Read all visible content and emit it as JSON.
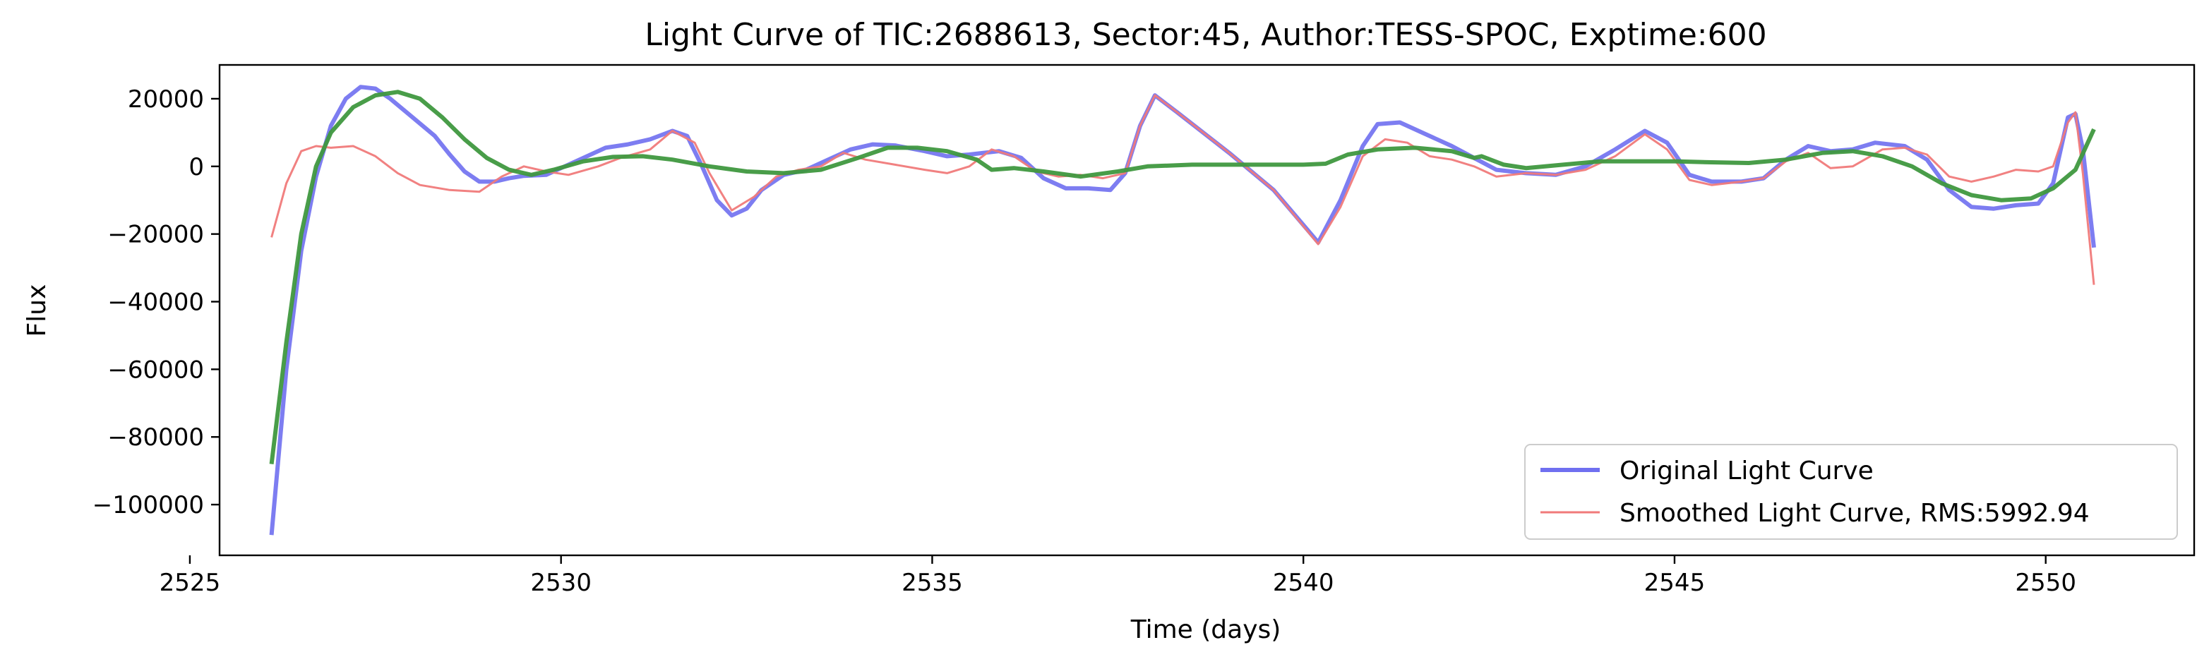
{
  "chart_data": {
    "type": "line",
    "title": "Light Curve of TIC:2688613, Sector:45, Author:TESS-SPOC, Exptime:600",
    "xlabel": "Time (days)",
    "ylabel": "Flux",
    "xlim": [
      2525.4,
      2552.0
    ],
    "ylim": [
      -115000,
      30000
    ],
    "xticks": [
      2525,
      2530,
      2535,
      2540,
      2545,
      2550
    ],
    "yticks": [
      20000,
      0,
      -20000,
      -40000,
      -60000,
      -80000,
      -100000
    ],
    "xtick_labels": [
      "2525",
      "2530",
      "2535",
      "2540",
      "2545",
      "2550"
    ],
    "ytick_labels": [
      "20000",
      "0",
      "−20000",
      "−40000",
      "−60000",
      "−80000",
      "−100000"
    ],
    "grid": false,
    "legend_position": "lower-right",
    "legend": [
      {
        "label": "Original Light Curve",
        "color": "#6f6ff0"
      },
      {
        "label": "Smoothed Light Curve, RMS:5992.94",
        "color": "#f07a7a"
      }
    ],
    "series": [
      {
        "color": "#6f6ff0",
        "points": [
          [
            2526.1,
            -109000
          ],
          [
            2526.3,
            -60000
          ],
          [
            2526.5,
            -25000
          ],
          [
            2526.7,
            -3000
          ],
          [
            2526.9,
            12000
          ],
          [
            2527.1,
            20000
          ],
          [
            2527.3,
            23500
          ],
          [
            2527.5,
            23000
          ],
          [
            2527.7,
            20000
          ],
          [
            2528.0,
            14500
          ],
          [
            2528.3,
            9000
          ],
          [
            2528.5,
            3500
          ],
          [
            2528.7,
            -1500
          ],
          [
            2528.9,
            -4500
          ],
          [
            2529.1,
            -4500
          ],
          [
            2529.3,
            -3500
          ],
          [
            2529.5,
            -2800
          ],
          [
            2529.8,
            -2500
          ],
          [
            2530.0,
            -500
          ],
          [
            2530.3,
            2500
          ],
          [
            2530.6,
            5500
          ],
          [
            2530.9,
            6500
          ],
          [
            2531.2,
            8000
          ],
          [
            2531.5,
            10500
          ],
          [
            2531.7,
            9000
          ],
          [
            2531.9,
            0
          ],
          [
            2532.1,
            -10000
          ],
          [
            2532.3,
            -14500
          ],
          [
            2532.5,
            -12500
          ],
          [
            2532.7,
            -7000
          ],
          [
            2533.0,
            -2500
          ],
          [
            2533.3,
            -1000
          ],
          [
            2533.6,
            2000
          ],
          [
            2533.9,
            5000
          ],
          [
            2534.2,
            6500
          ],
          [
            2534.5,
            6200
          ],
          [
            2534.9,
            4500
          ],
          [
            2535.2,
            3000
          ],
          [
            2535.5,
            3500
          ],
          [
            2535.9,
            4500
          ],
          [
            2536.2,
            2500
          ],
          [
            2536.5,
            -3500
          ],
          [
            2536.8,
            -6500
          ],
          [
            2537.1,
            -6500
          ],
          [
            2537.4,
            -7000
          ],
          [
            2537.6,
            -2000
          ],
          [
            2537.8,
            12000
          ],
          [
            2538.0,
            21000
          ],
          [
            2538.3,
            16000
          ],
          [
            2539.0,
            4000
          ],
          [
            2539.6,
            -7000
          ],
          [
            2540.2,
            -22500
          ],
          [
            2540.5,
            -10000
          ],
          [
            2540.8,
            6000
          ],
          [
            2541.0,
            12500
          ],
          [
            2541.3,
            13000
          ],
          [
            2541.6,
            10000
          ],
          [
            2542.0,
            6000
          ],
          [
            2542.3,
            2500
          ],
          [
            2542.6,
            -1000
          ],
          [
            2543.0,
            -2000
          ],
          [
            2543.4,
            -2500
          ],
          [
            2543.8,
            0
          ],
          [
            2544.2,
            5000
          ],
          [
            2544.6,
            10500
          ],
          [
            2544.9,
            7000
          ],
          [
            2545.2,
            -2500
          ],
          [
            2545.5,
            -4500
          ],
          [
            2545.9,
            -4500
          ],
          [
            2546.2,
            -3500
          ],
          [
            2546.5,
            2000
          ],
          [
            2546.8,
            6000
          ],
          [
            2547.1,
            4500
          ],
          [
            2547.4,
            5000
          ],
          [
            2547.7,
            7000
          ],
          [
            2548.1,
            6000
          ],
          [
            2548.4,
            2000
          ],
          [
            2548.7,
            -7000
          ],
          [
            2549.0,
            -12000
          ],
          [
            2549.3,
            -12500
          ],
          [
            2549.6,
            -11500
          ],
          [
            2549.9,
            -11000
          ],
          [
            2550.1,
            -5000
          ],
          [
            2550.3,
            14500
          ],
          [
            2550.4,
            15500
          ],
          [
            2550.5,
            5000
          ],
          [
            2550.65,
            -24000
          ]
        ]
      },
      {
        "color": "#f07a7a",
        "points": [
          [
            2526.1,
            -21000
          ],
          [
            2526.3,
            -5000
          ],
          [
            2526.5,
            4500
          ],
          [
            2526.7,
            6000
          ],
          [
            2526.9,
            5500
          ],
          [
            2527.2,
            6000
          ],
          [
            2527.5,
            3000
          ],
          [
            2527.8,
            -2000
          ],
          [
            2528.1,
            -5500
          ],
          [
            2528.5,
            -7000
          ],
          [
            2528.9,
            -7500
          ],
          [
            2529.2,
            -3000
          ],
          [
            2529.5,
            0
          ],
          [
            2529.8,
            -1500
          ],
          [
            2530.1,
            -2500
          ],
          [
            2530.5,
            0
          ],
          [
            2530.8,
            2500
          ],
          [
            2531.2,
            5000
          ],
          [
            2531.5,
            10500
          ],
          [
            2531.8,
            7000
          ],
          [
            2532.0,
            -2000
          ],
          [
            2532.3,
            -13000
          ],
          [
            2532.6,
            -9000
          ],
          [
            2532.9,
            -3000
          ],
          [
            2533.2,
            -1000
          ],
          [
            2533.5,
            0
          ],
          [
            2533.8,
            4000
          ],
          [
            2534.1,
            2000
          ],
          [
            2534.5,
            500
          ],
          [
            2534.9,
            -1000
          ],
          [
            2535.2,
            -2000
          ],
          [
            2535.5,
            0
          ],
          [
            2535.8,
            5000
          ],
          [
            2536.1,
            3000
          ],
          [
            2536.4,
            -1500
          ],
          [
            2536.7,
            -3000
          ],
          [
            2537.0,
            -2500
          ],
          [
            2537.3,
            -3500
          ],
          [
            2537.6,
            -2000
          ],
          [
            2537.8,
            12000
          ],
          [
            2538.0,
            21000
          ],
          [
            2538.3,
            16000
          ],
          [
            2539.0,
            4000
          ],
          [
            2539.6,
            -7000
          ],
          [
            2540.2,
            -23000
          ],
          [
            2540.5,
            -12000
          ],
          [
            2540.8,
            3000
          ],
          [
            2541.1,
            8000
          ],
          [
            2541.4,
            7000
          ],
          [
            2541.7,
            3000
          ],
          [
            2542.0,
            2000
          ],
          [
            2542.3,
            0
          ],
          [
            2542.6,
            -3000
          ],
          [
            2543.0,
            -2000
          ],
          [
            2543.4,
            -2500
          ],
          [
            2543.8,
            -1000
          ],
          [
            2544.2,
            3000
          ],
          [
            2544.6,
            9500
          ],
          [
            2544.9,
            5000
          ],
          [
            2545.2,
            -4000
          ],
          [
            2545.5,
            -5500
          ],
          [
            2545.9,
            -4500
          ],
          [
            2546.2,
            -3500
          ],
          [
            2546.5,
            1500
          ],
          [
            2546.8,
            4000
          ],
          [
            2547.1,
            -500
          ],
          [
            2547.4,
            0
          ],
          [
            2547.8,
            5000
          ],
          [
            2548.1,
            5500
          ],
          [
            2548.4,
            3500
          ],
          [
            2548.7,
            -3000
          ],
          [
            2549.0,
            -4500
          ],
          [
            2549.3,
            -3000
          ],
          [
            2549.6,
            -1000
          ],
          [
            2549.9,
            -1500
          ],
          [
            2550.1,
            0
          ],
          [
            2550.3,
            13000
          ],
          [
            2550.4,
            16000
          ],
          [
            2550.5,
            -2000
          ],
          [
            2550.65,
            -35000
          ]
        ]
      },
      {
        "color": "#3f983f",
        "points": [
          [
            2526.1,
            -88000
          ],
          [
            2526.3,
            -52000
          ],
          [
            2526.5,
            -20000
          ],
          [
            2526.7,
            0
          ],
          [
            2526.9,
            10000
          ],
          [
            2527.2,
            17500
          ],
          [
            2527.5,
            21000
          ],
          [
            2527.8,
            22000
          ],
          [
            2528.1,
            20000
          ],
          [
            2528.4,
            14500
          ],
          [
            2528.7,
            8000
          ],
          [
            2529.0,
            2500
          ],
          [
            2529.3,
            -1000
          ],
          [
            2529.6,
            -2500
          ],
          [
            2529.9,
            -1000
          ],
          [
            2530.3,
            1500
          ],
          [
            2530.7,
            2800
          ],
          [
            2531.1,
            3000
          ],
          [
            2531.5,
            2000
          ],
          [
            2532.0,
            0
          ],
          [
            2532.5,
            -1500
          ],
          [
            2533.0,
            -2000
          ],
          [
            2533.5,
            -1000
          ],
          [
            2534.0,
            2500
          ],
          [
            2534.4,
            5500
          ],
          [
            2534.8,
            5500
          ],
          [
            2535.2,
            4500
          ],
          [
            2535.6,
            2000
          ],
          [
            2535.8,
            -1000
          ],
          [
            2536.1,
            -500
          ],
          [
            2536.5,
            -1500
          ],
          [
            2537.0,
            -3000
          ],
          [
            2537.5,
            -1500
          ],
          [
            2537.9,
            0
          ],
          [
            2538.5,
            500
          ],
          [
            2539.0,
            500
          ],
          [
            2539.5,
            500
          ],
          [
            2540.0,
            500
          ],
          [
            2540.3,
            800
          ],
          [
            2540.6,
            3500
          ],
          [
            2541.0,
            5000
          ],
          [
            2541.5,
            5500
          ],
          [
            2542.0,
            4500
          ],
          [
            2542.3,
            2500
          ],
          [
            2542.4,
            3000
          ],
          [
            2542.7,
            500
          ],
          [
            2543.0,
            -500
          ],
          [
            2543.5,
            500
          ],
          [
            2544.0,
            1500
          ],
          [
            2544.5,
            1500
          ],
          [
            2545.0,
            1500
          ],
          [
            2545.5,
            1200
          ],
          [
            2546.0,
            1000
          ],
          [
            2546.5,
            2000
          ],
          [
            2547.0,
            4000
          ],
          [
            2547.4,
            4500
          ],
          [
            2547.8,
            3000
          ],
          [
            2548.2,
            0
          ],
          [
            2548.6,
            -5000
          ],
          [
            2549.0,
            -8500
          ],
          [
            2549.4,
            -10000
          ],
          [
            2549.8,
            -9500
          ],
          [
            2550.1,
            -6500
          ],
          [
            2550.4,
            -1000
          ],
          [
            2550.65,
            11000
          ]
        ]
      }
    ]
  }
}
